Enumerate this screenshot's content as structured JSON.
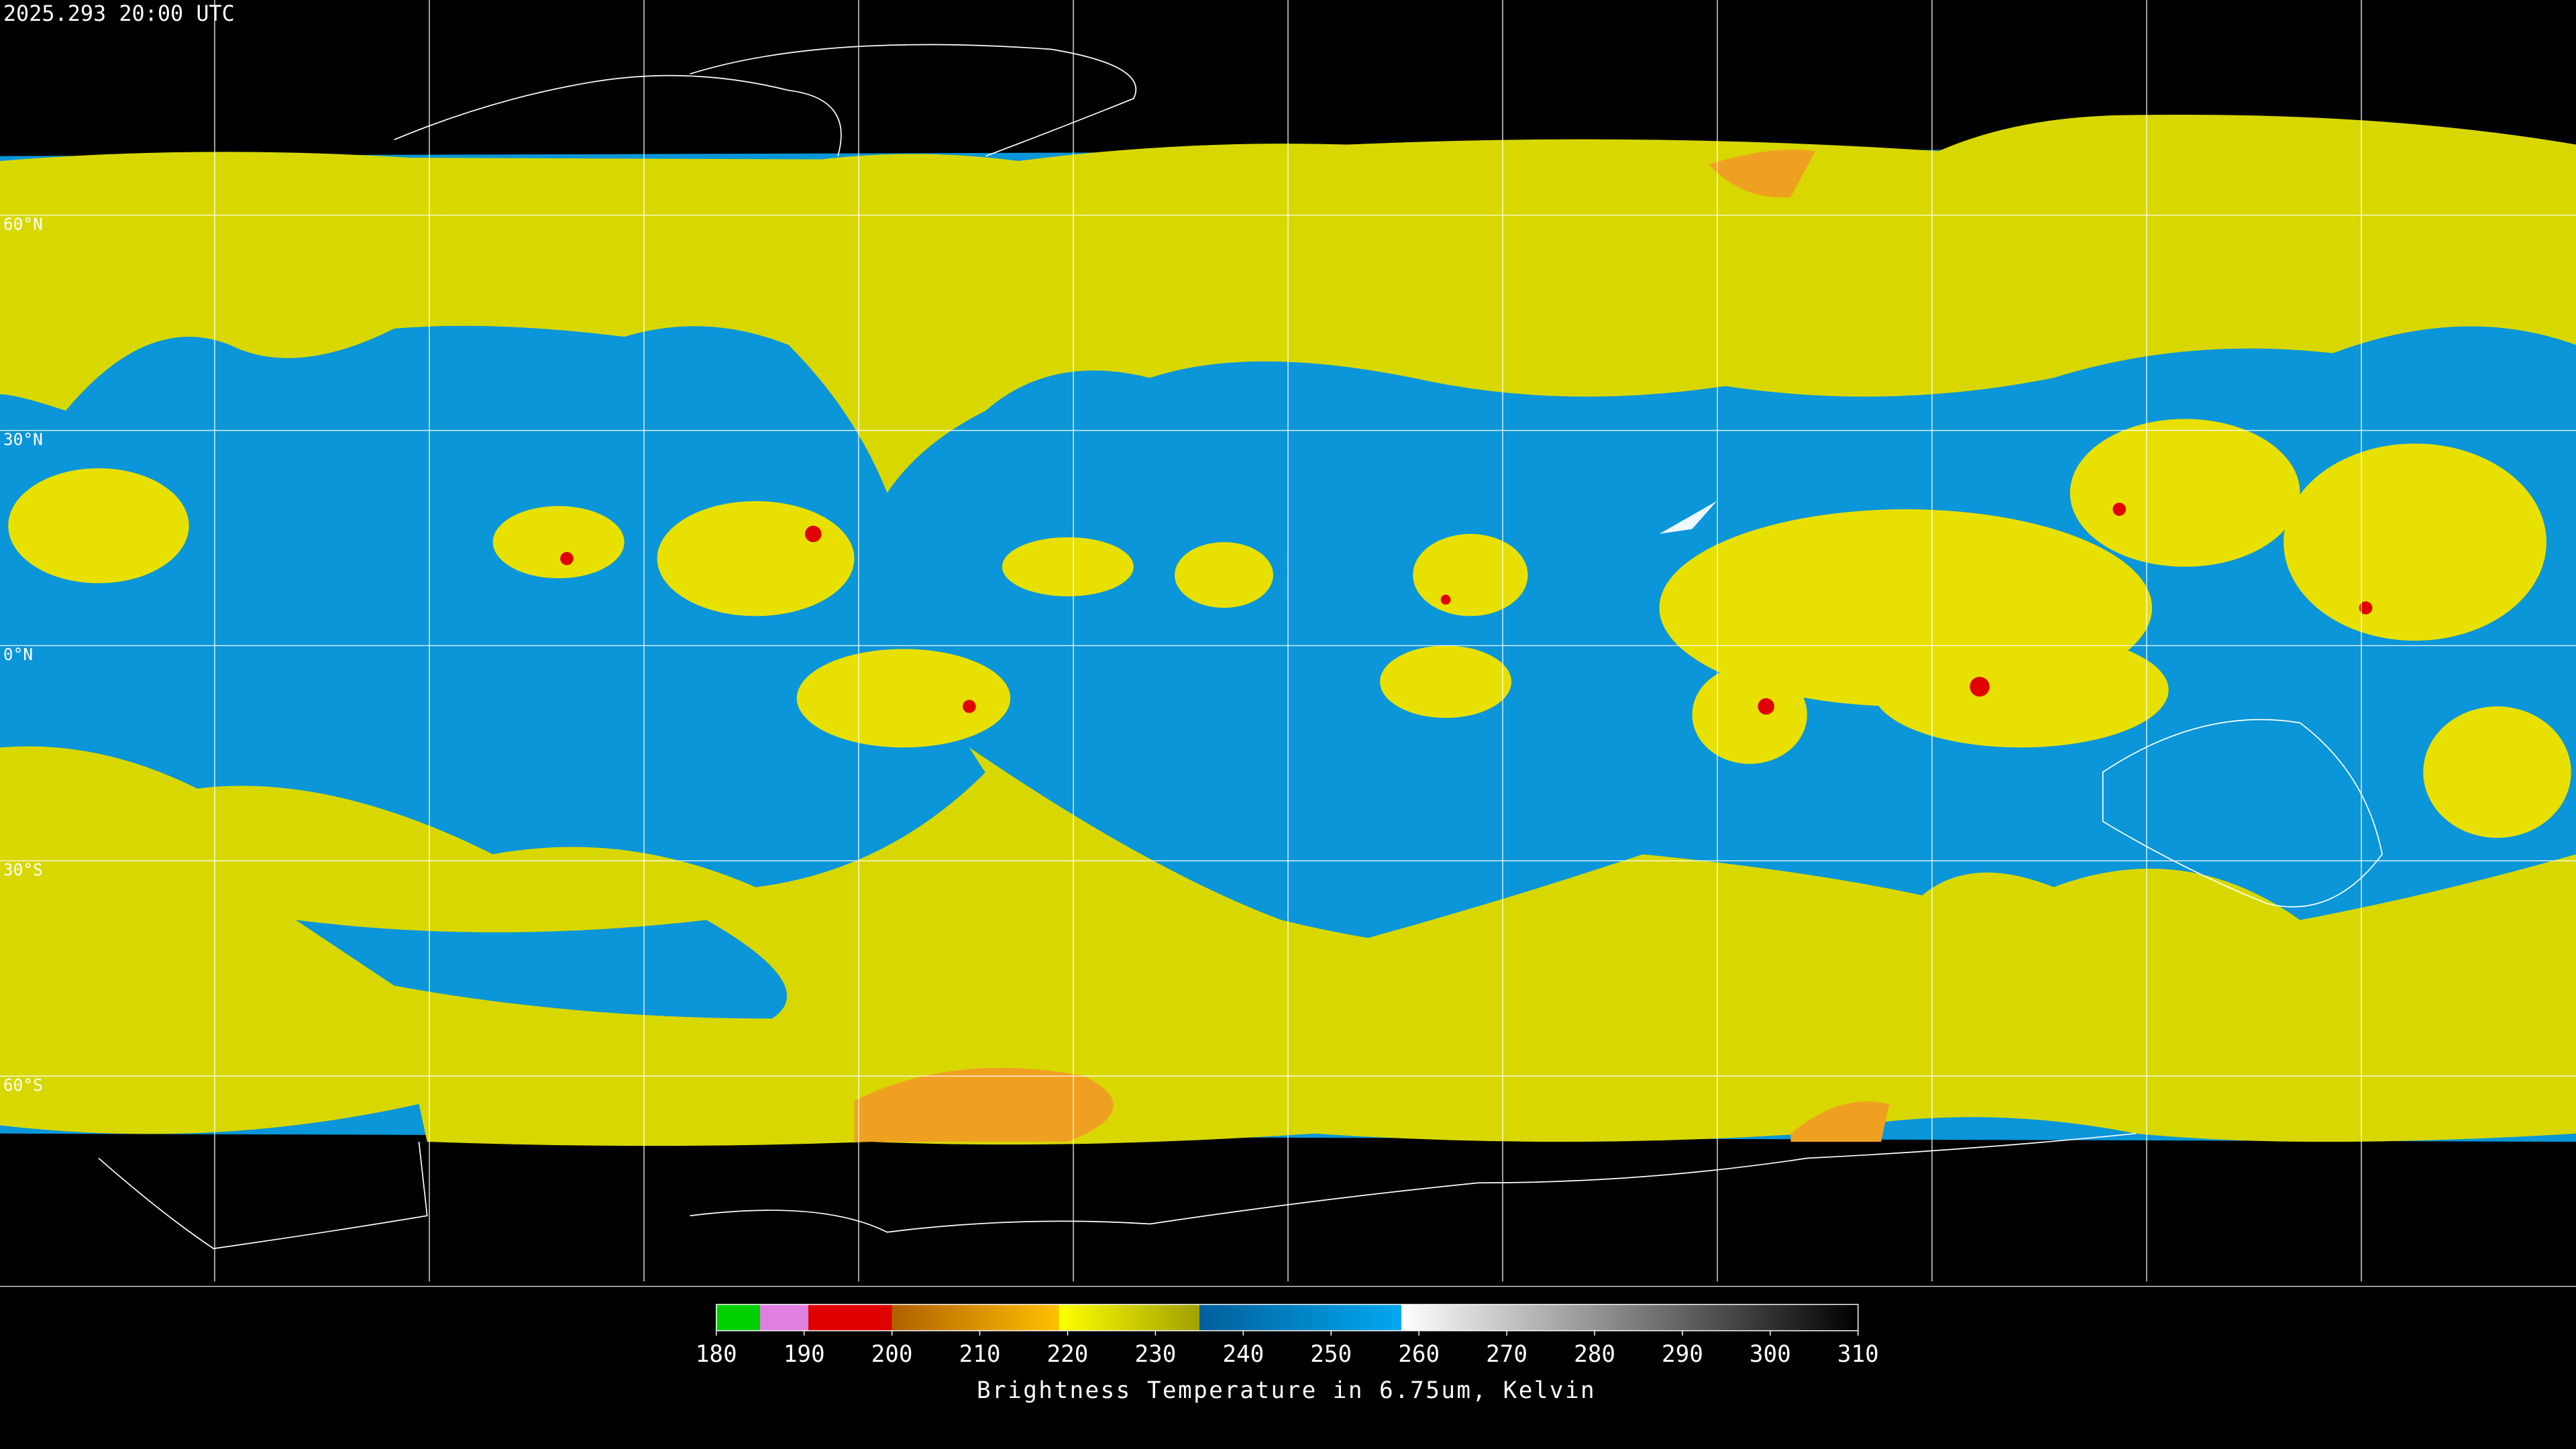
{
  "header": {
    "title": "2025.293 20:00 UTC"
  },
  "map": {
    "latitudes": [
      {
        "value": 60,
        "label": "60°N"
      },
      {
        "value": 30,
        "label": "30°N"
      },
      {
        "value": 0,
        "label": "0°N"
      },
      {
        "value": -30,
        "label": "30°S"
      },
      {
        "value": -60,
        "label": "60°S"
      }
    ]
  },
  "colorbar": {
    "label": "Brightness Temperature in 6.75um, Kelvin",
    "range": [
      180,
      310
    ],
    "ticks": [
      180,
      190,
      200,
      210,
      220,
      230,
      240,
      250,
      260,
      270,
      280,
      290,
      300,
      310
    ],
    "stops": [
      {
        "value": 180,
        "color": "#00d000"
      },
      {
        "value": 185,
        "color": "#00d000"
      },
      {
        "value": 185,
        "color": "#e080e0"
      },
      {
        "value": 190.5,
        "color": "#e080e0"
      },
      {
        "value": 190.5,
        "color": "#e00000"
      },
      {
        "value": 200,
        "color": "#e00000"
      },
      {
        "value": 200,
        "color": "#b06000"
      },
      {
        "value": 219,
        "color": "#ffc000"
      },
      {
        "value": 219,
        "color": "#ffff00"
      },
      {
        "value": 235,
        "color": "#a0a000"
      },
      {
        "value": 235,
        "color": "#005f9a"
      },
      {
        "value": 258,
        "color": "#00a8f0"
      },
      {
        "value": 258,
        "color": "#ffffff"
      },
      {
        "value": 310,
        "color": "#000000"
      }
    ]
  }
}
